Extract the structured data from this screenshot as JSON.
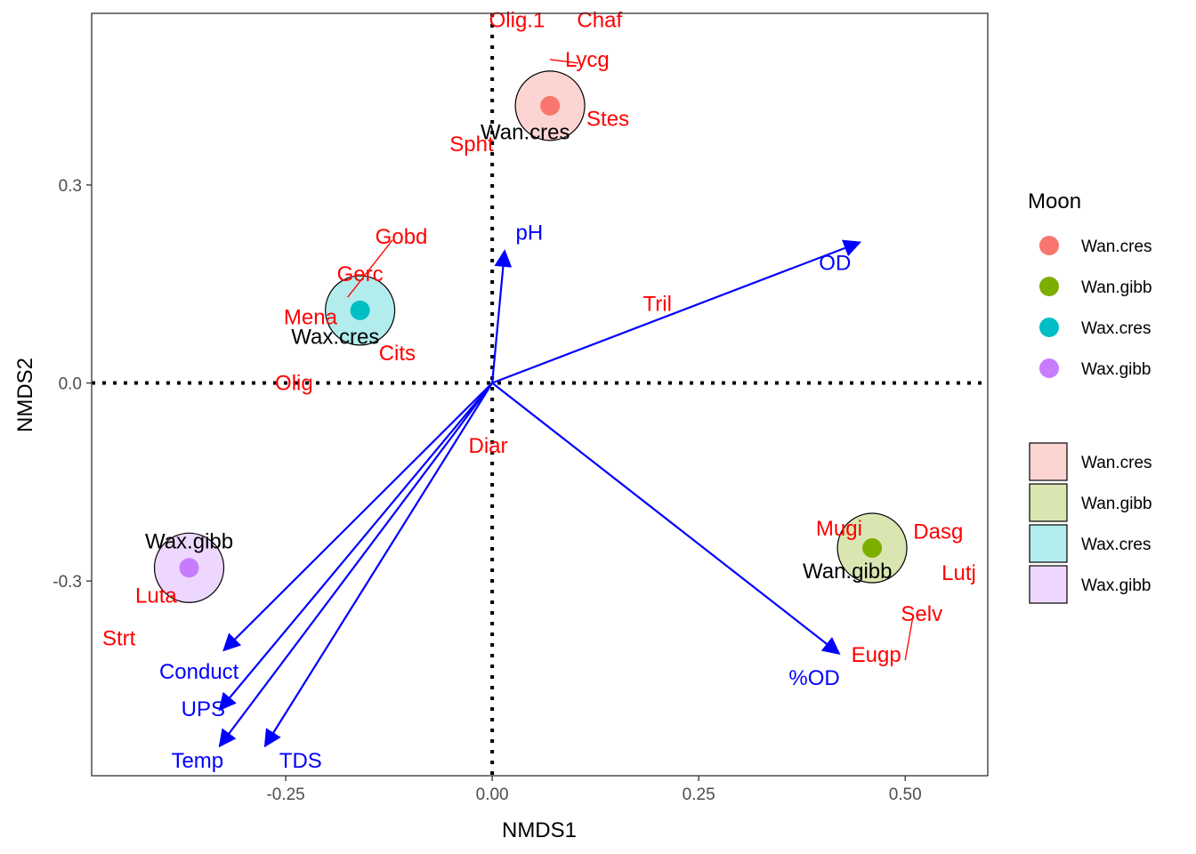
{
  "chart_data": {
    "type": "scatter",
    "xlabel": "NMDS1",
    "ylabel": "NMDS2",
    "xlim": [
      -0.485,
      0.6
    ],
    "ylim": [
      -0.595,
      0.56
    ],
    "x_ticks": [
      {
        "value": -0.25,
        "label": "-0.25"
      },
      {
        "value": 0.0,
        "label": "0.00"
      },
      {
        "value": 0.25,
        "label": "0.25"
      },
      {
        "value": 0.5,
        "label": "0.50"
      }
    ],
    "y_ticks": [
      {
        "value": -0.3,
        "label": "-0.3"
      },
      {
        "value": 0.0,
        "label": "0.0"
      },
      {
        "value": 0.3,
        "label": "0.3"
      }
    ],
    "grid": false,
    "reference_lines": {
      "x": 0,
      "y": 0,
      "style": "dotted"
    },
    "colors": {
      "species_text": "#ff0000",
      "env_arrow": "#0000ff",
      "Wan.cres": "#f8766d",
      "Wan.gibb": "#7cae00",
      "Wax.cres": "#00bfc4",
      "Wax.gibb": "#c77cff",
      "Wan.cres_fill": "#fcd5d2",
      "Wan.gibb_fill": "#dae6b2",
      "Wax.cres_fill": "#b2ecec",
      "Wax.gibb_fill": "#eed7ff"
    },
    "groups": [
      {
        "name": "Wan.cres",
        "x": 0.07,
        "y": 0.42,
        "radius": 0.042,
        "label_x": 0.04,
        "label_y": 0.38
      },
      {
        "name": "Wan.gibb",
        "x": 0.46,
        "y": -0.25,
        "radius": 0.042,
        "label_x": 0.43,
        "label_y": -0.285
      },
      {
        "name": "Wax.cres",
        "x": -0.16,
        "y": 0.11,
        "radius": 0.042,
        "label_x": -0.19,
        "label_y": 0.07
      },
      {
        "name": "Wax.gibb",
        "x": -0.367,
        "y": -0.28,
        "radius": 0.042,
        "label_x": -0.367,
        "label_y": -0.24
      }
    ],
    "species": [
      {
        "name": "Olig.1",
        "x": -0.01,
        "y": 0.55,
        "label_x": 0.03,
        "label_y": 0.55
      },
      {
        "name": "Chaf",
        "x": 0.1,
        "y": 0.55,
        "label_x": 0.13,
        "label_y": 0.55
      },
      {
        "name": "Lycg",
        "x": 0.07,
        "y": 0.49,
        "label_x": 0.115,
        "label_y": 0.49
      },
      {
        "name": "Stes",
        "x": 0.1,
        "y": 0.4,
        "label_x": 0.14,
        "label_y": 0.4
      },
      {
        "name": "Spht",
        "x": -0.04,
        "y": 0.37,
        "label_x": -0.025,
        "label_y": 0.362
      },
      {
        "name": "Gobd",
        "x": -0.175,
        "y": 0.13,
        "label_x": -0.11,
        "label_y": 0.222
      },
      {
        "name": "Gerc",
        "x": -0.16,
        "y": 0.165,
        "label_x": -0.16,
        "label_y": 0.165
      },
      {
        "name": "Mena",
        "x": -0.24,
        "y": 0.1,
        "label_x": -0.22,
        "label_y": 0.1
      },
      {
        "name": "Cits",
        "x": -0.115,
        "y": 0.045,
        "label_x": -0.115,
        "label_y": 0.045
      },
      {
        "name": "Olig",
        "x": -0.26,
        "y": 0.0,
        "label_x": -0.24,
        "label_y": 0.0
      },
      {
        "name": "Tril",
        "x": 0.18,
        "y": 0.12,
        "label_x": 0.2,
        "label_y": 0.12
      },
      {
        "name": "Diar",
        "x": -0.005,
        "y": -0.09,
        "label_x": -0.005,
        "label_y": -0.095
      },
      {
        "name": "Mugi",
        "x": 0.46,
        "y": -0.23,
        "label_x": 0.42,
        "label_y": -0.22
      },
      {
        "name": "Dasg",
        "x": 0.55,
        "y": -0.25,
        "label_x": 0.54,
        "label_y": -0.225
      },
      {
        "name": "Lutj",
        "x": 0.56,
        "y": -0.3,
        "label_x": 0.565,
        "label_y": -0.288
      },
      {
        "name": "Selv",
        "x": 0.5,
        "y": -0.42,
        "label_x": 0.52,
        "label_y": -0.35
      },
      {
        "name": "Eugp",
        "x": 0.5,
        "y": -0.42,
        "label_x": 0.465,
        "label_y": -0.412
      },
      {
        "name": "Luta",
        "x": -0.4,
        "y": -0.32,
        "label_x": -0.407,
        "label_y": -0.322
      },
      {
        "name": "Strt",
        "x": -0.452,
        "y": -0.387,
        "label_x": -0.452,
        "label_y": -0.387
      }
    ],
    "env_vectors": [
      {
        "name": "pH",
        "x": 0.015,
        "y": 0.2,
        "label_x": 0.045,
        "label_y": 0.228
      },
      {
        "name": "OD",
        "x": 0.445,
        "y": 0.213,
        "label_x": 0.415,
        "label_y": 0.182
      },
      {
        "name": "%OD",
        "x": 0.42,
        "y": -0.41,
        "label_x": 0.39,
        "label_y": -0.447
      },
      {
        "name": "Conduct",
        "x": -0.325,
        "y": -0.405,
        "label_x": -0.355,
        "label_y": -0.437
      },
      {
        "name": "UPS",
        "x": -0.33,
        "y": -0.495,
        "label_x": -0.35,
        "label_y": -0.494
      },
      {
        "name": "Temp",
        "x": -0.33,
        "y": -0.55,
        "label_x": -0.357,
        "label_y": -0.572
      },
      {
        "name": "TDS",
        "x": -0.275,
        "y": -0.55,
        "label_x": -0.232,
        "label_y": -0.572
      }
    ],
    "legend": {
      "position": "right",
      "title": "Moon",
      "entries": [
        "Wan.cres",
        "Wan.gibb",
        "Wax.cres",
        "Wax.gibb"
      ],
      "fill_entries": [
        "Wan.cres",
        "Wan.gibb",
        "Wax.cres",
        "Wax.gibb"
      ]
    }
  }
}
